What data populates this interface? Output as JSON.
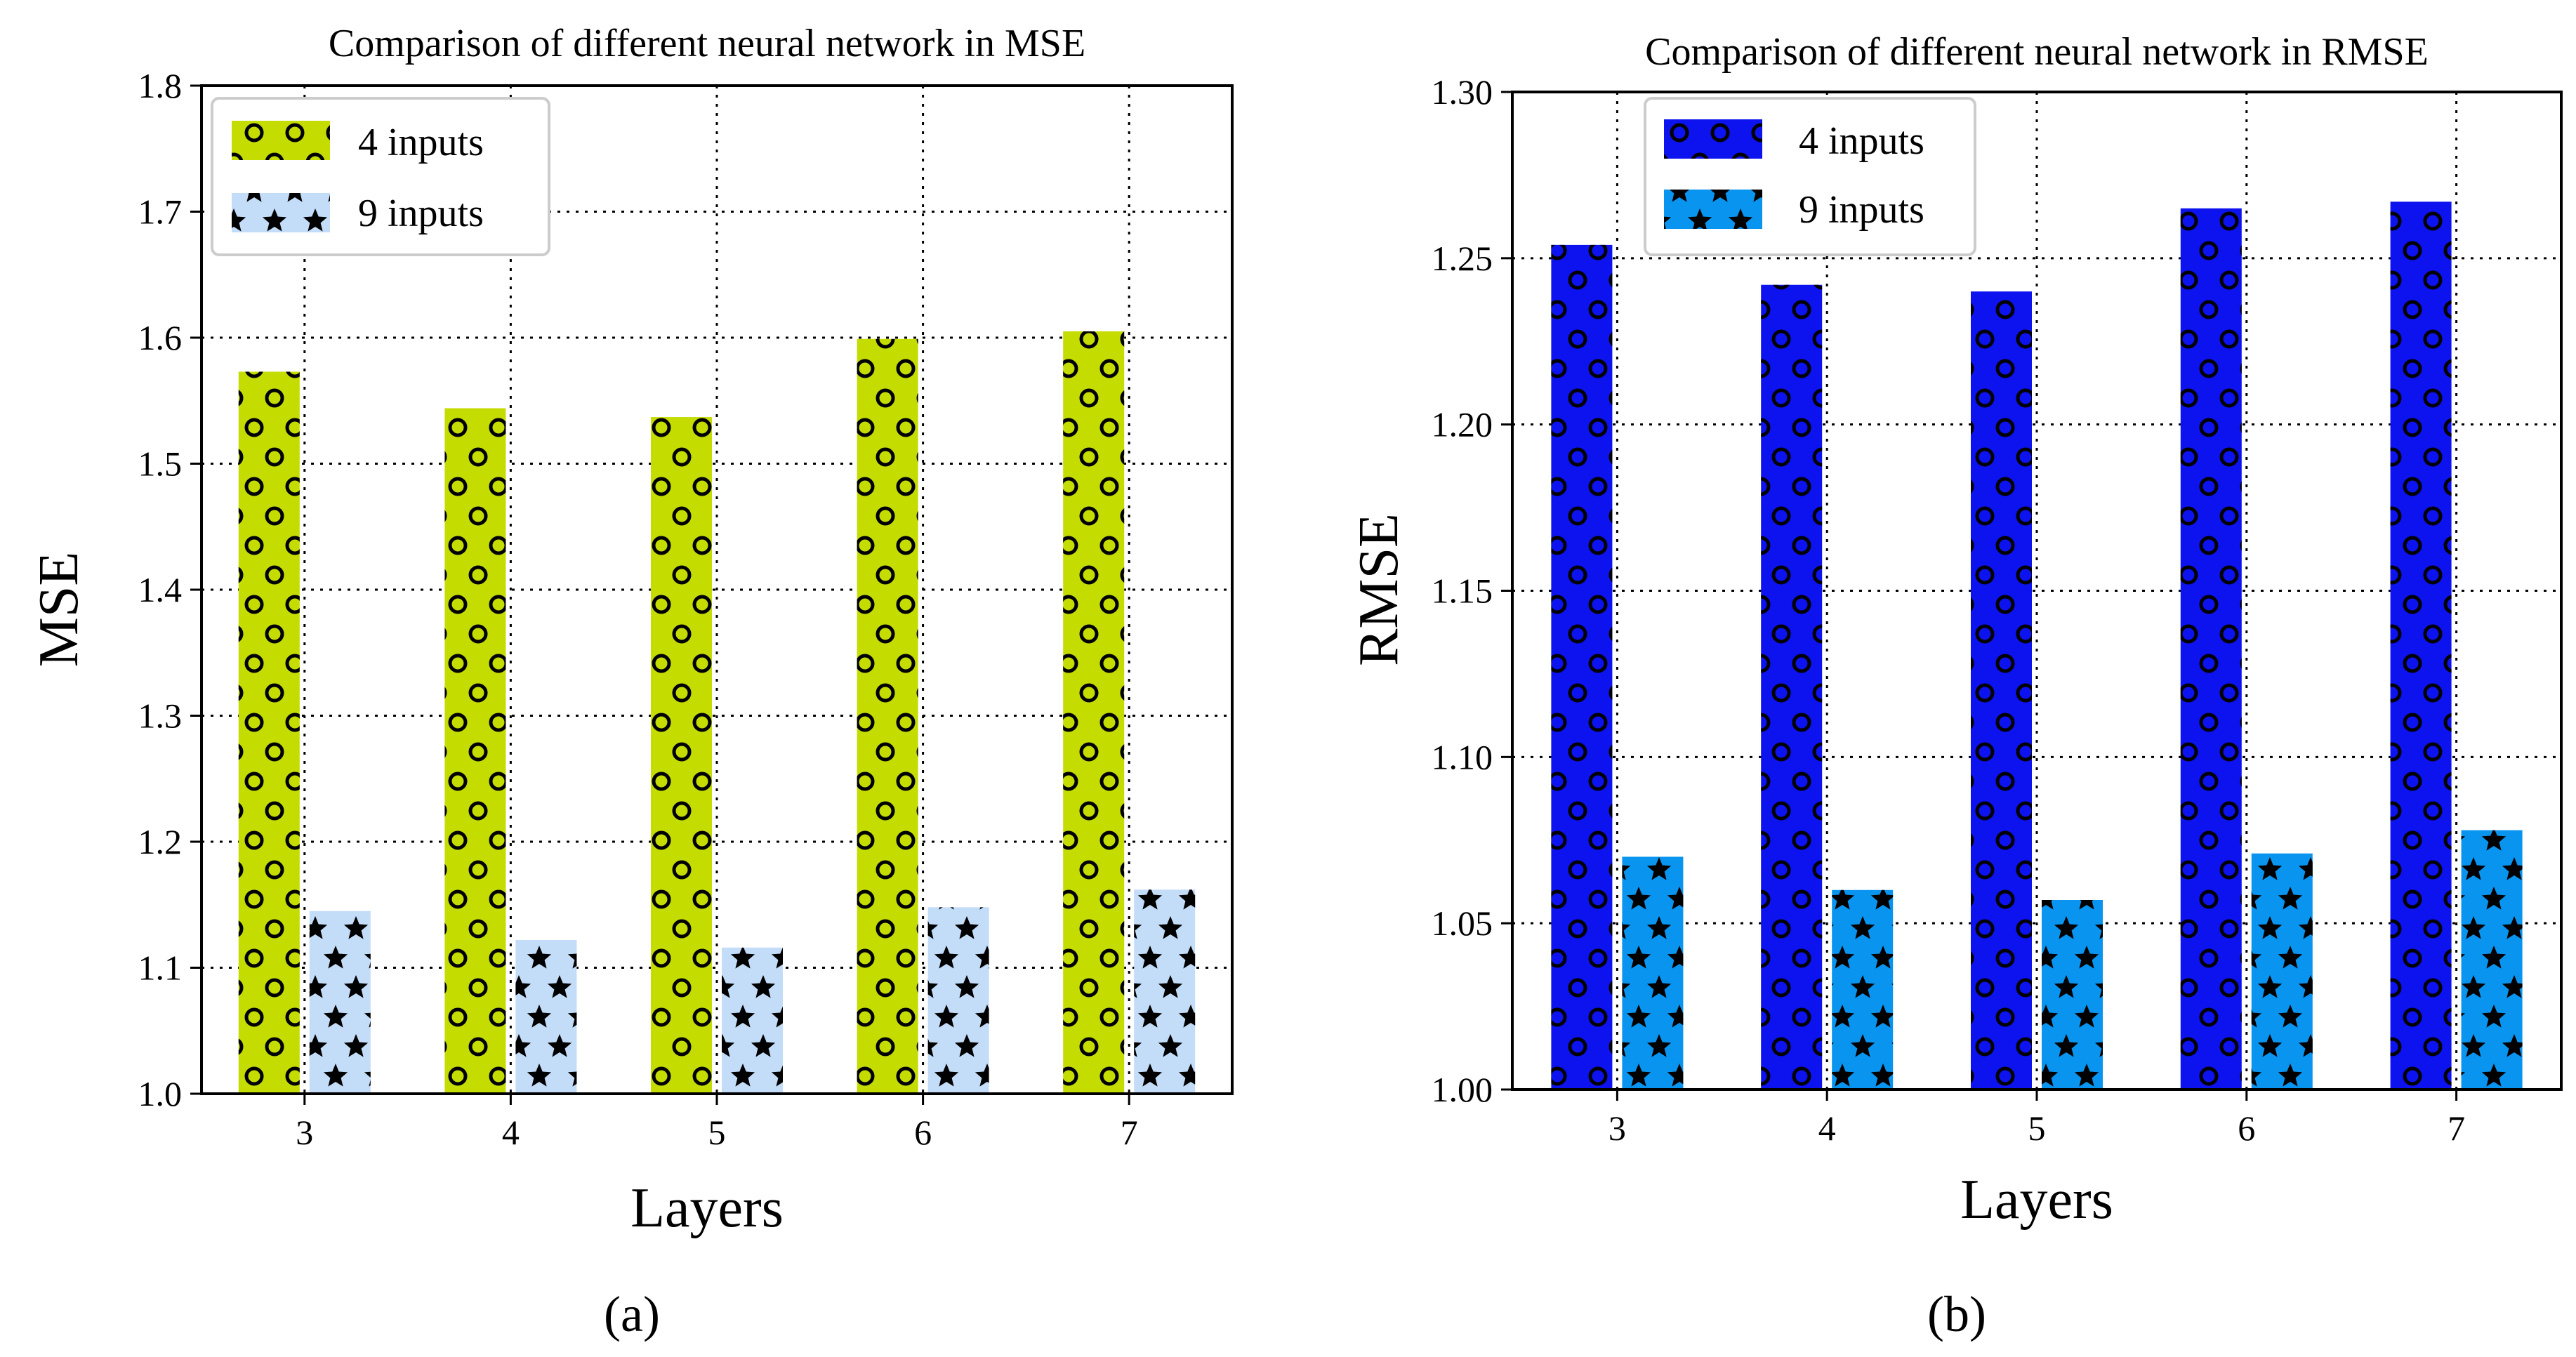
{
  "figure": {
    "subfigure_labels": [
      "(a)",
      "(b)"
    ]
  },
  "chart_data": [
    {
      "type": "bar",
      "title": "Comparison of different neural network in MSE",
      "xlabel": "Layers",
      "ylabel": "MSE",
      "categories": [
        "3",
        "4",
        "5",
        "6",
        "7"
      ],
      "ylim": [
        1.0,
        1.8
      ],
      "yticks": [
        "1.0",
        "1.1",
        "1.2",
        "1.3",
        "1.4",
        "1.5",
        "1.6",
        "1.7",
        "1.8"
      ],
      "grid": true,
      "legend_position": "top-left",
      "series": [
        {
          "name": "4 inputs",
          "values": [
            1.573,
            1.544,
            1.537,
            1.599,
            1.605
          ],
          "color": "#c5dc00",
          "pattern": "circles"
        },
        {
          "name": "9 inputs",
          "values": [
            1.145,
            1.122,
            1.116,
            1.148,
            1.162
          ],
          "color": "#c3dcf8",
          "pattern": "stars"
        }
      ]
    },
    {
      "type": "bar",
      "title": "Comparison of different neural network in RMSE",
      "xlabel": "Layers",
      "ylabel": "RMSE",
      "categories": [
        "3",
        "4",
        "5",
        "6",
        "7"
      ],
      "ylim": [
        1.0,
        1.3
      ],
      "yticks": [
        "1.00",
        "1.05",
        "1.10",
        "1.15",
        "1.20",
        "1.25",
        "1.30"
      ],
      "grid": true,
      "legend_position": "top-left",
      "series": [
        {
          "name": "4 inputs",
          "values": [
            1.254,
            1.242,
            1.24,
            1.265,
            1.267
          ],
          "color": "#0d13ee",
          "pattern": "circles"
        },
        {
          "name": "9 inputs",
          "values": [
            1.07,
            1.06,
            1.057,
            1.071,
            1.078
          ],
          "color": "#0994ef",
          "pattern": "stars"
        }
      ]
    }
  ]
}
